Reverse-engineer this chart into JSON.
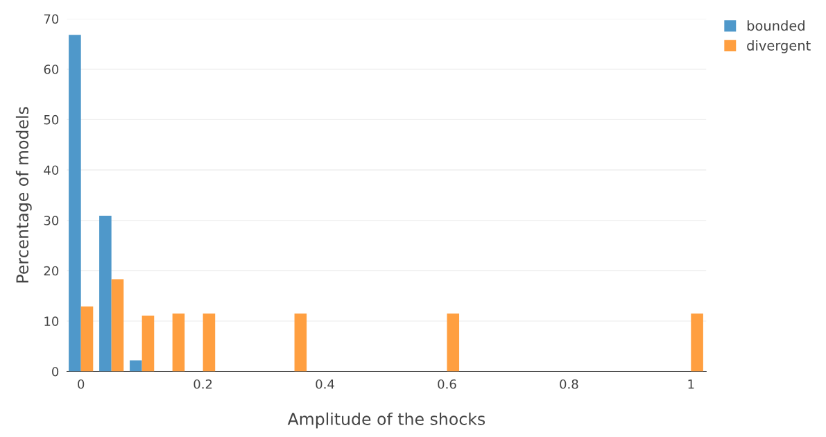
{
  "chart_data": {
    "type": "bar",
    "xlabel": "Amplitude of the shocks",
    "ylabel": "Percentage of models",
    "series": [
      {
        "name": "bounded",
        "color": "#4f98ca",
        "x": [
          0,
          0.05,
          0.1
        ],
        "values": [
          66.8,
          30.9,
          2.2
        ]
      },
      {
        "name": "divergent",
        "color": "#ff9f40",
        "x": [
          0,
          0.05,
          0.1,
          0.15,
          0.2,
          0.35,
          0.6,
          1
        ],
        "values": [
          12.9,
          18.3,
          11.1,
          11.5,
          11.5,
          11.5,
          11.5,
          11.5
        ]
      }
    ],
    "xlim": [
      -0.023,
      1.025
    ],
    "xticks": [
      0,
      0.2,
      0.4,
      0.6,
      0.8,
      1
    ],
    "ylim": [
      0,
      70
    ],
    "yticks": [
      0,
      10,
      20,
      30,
      40,
      50,
      60,
      70
    ],
    "grid": "y",
    "legend": "top right"
  }
}
